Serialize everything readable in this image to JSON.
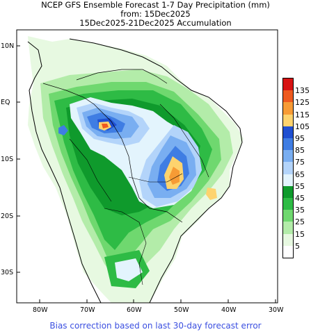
{
  "title": {
    "line1": "NCEP GFS Ensemble Forecast 1-7 Day Precipitation (mm)",
    "line2": "from: 15Dec2025",
    "line3": "15Dec2025-21Dec2025 Accumulation"
  },
  "footer": "Bias correction based on last 30-day forecast error",
  "axes": {
    "lat_labels": [
      "10N",
      "EQ",
      "10S",
      "20S",
      "30S"
    ],
    "lon_labels": [
      "80W",
      "70W",
      "60W",
      "50W",
      "40W",
      "30W"
    ]
  },
  "legend": {
    "levels": [
      {
        "label": "135",
        "color": "#d71313"
      },
      {
        "label": "125",
        "color": "#ee5a1f"
      },
      {
        "label": "115",
        "color": "#f79b35"
      },
      {
        "label": "105",
        "color": "#fdd36e"
      },
      {
        "label": "95",
        "color": "#1f4fd1"
      },
      {
        "label": "85",
        "color": "#3f7de3"
      },
      {
        "label": "75",
        "color": "#79aef1"
      },
      {
        "label": "65",
        "color": "#b3d4fa"
      },
      {
        "label": "55",
        "color": "#e3f4fd"
      },
      {
        "label": "45",
        "color": "#0f9a2c"
      },
      {
        "label": "35",
        "color": "#2ebb45"
      },
      {
        "label": "25",
        "color": "#6fd86f"
      },
      {
        "label": "15",
        "color": "#b3eca9"
      },
      {
        "label": "5",
        "color": "#e7f9e1"
      },
      {
        "label": "",
        "color": "#ffffff"
      }
    ]
  }
}
